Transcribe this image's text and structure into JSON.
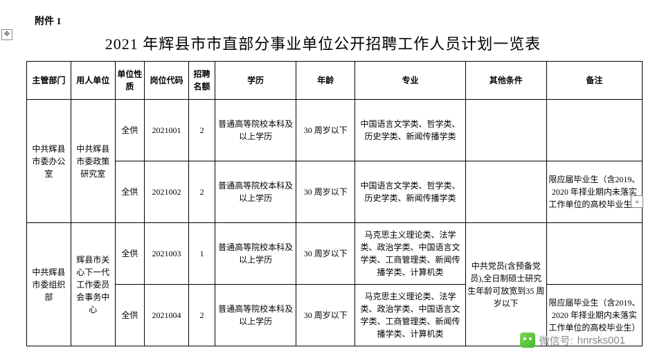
{
  "attachment_label": "附件 1",
  "title": "2021 年辉县市市直部分事业单位公开招聘工作人员计划一览表",
  "headers": [
    "主管部门",
    "用人单位",
    "单位性质",
    "岗位代码",
    "招聘名额",
    "学历",
    "年龄",
    "专业",
    "其他条件",
    "备注"
  ],
  "rows": [
    {
      "dept": "中共辉县市委办公室",
      "unit": "中共辉县市委政策研究室",
      "dept_rowspan": 2,
      "unit_rowspan": 2,
      "nature": "全供",
      "code": "2021001",
      "quota": "2",
      "edu": "普通高等院校本科及以上学历",
      "age": "30 周岁以下",
      "major": "中国语言文学类、哲学类、历史学类、新闻传播学类",
      "other": "",
      "other_rowspan": 1,
      "note": ""
    },
    {
      "nature": "全供",
      "code": "2021002",
      "quota": "2",
      "edu": "普通高等院校本科及以上学历",
      "age": "30 周岁以下",
      "major": "中国语言文学类、哲学类、历史学类、新闻传播学类",
      "other": "",
      "other_rowspan": 1,
      "note": "限应届毕业生（含2019、2020 年择业期内未落实工作单位的高校毕业生）"
    },
    {
      "dept": "中共辉县市委组织部",
      "unit": "辉县市关心下一代工作委员会事务中心",
      "dept_rowspan": 2,
      "unit_rowspan": 2,
      "nature": "全供",
      "code": "2021003",
      "quota": "1",
      "edu": "普通高等院校本科及以上学历",
      "age": "30 周岁以下",
      "major": "马克思主义理论类、法学类、政治学类、中国语言文学类、工商管理类、新闻传播学类、计算机类",
      "other": "中共党员(含预备党员),全日制硕士研究生年龄可放宽到35 周岁以下",
      "other_rowspan": 2,
      "note": ""
    },
    {
      "nature": "全供",
      "code": "2021004",
      "quota": "2",
      "edu": "普通高等院校本科及以上学历",
      "age": "30 周岁以下",
      "major": "马克思主义理论类、法学类、政治学类、中国语言文学类、工商管理类、新闻传播学类、计算机类",
      "note": "限应届毕业生（含2019、2020 年择业期内未落实工作单位的高校毕业生）"
    }
  ],
  "watermark": {
    "label": "微信号:",
    "value": "hnrsks001"
  }
}
